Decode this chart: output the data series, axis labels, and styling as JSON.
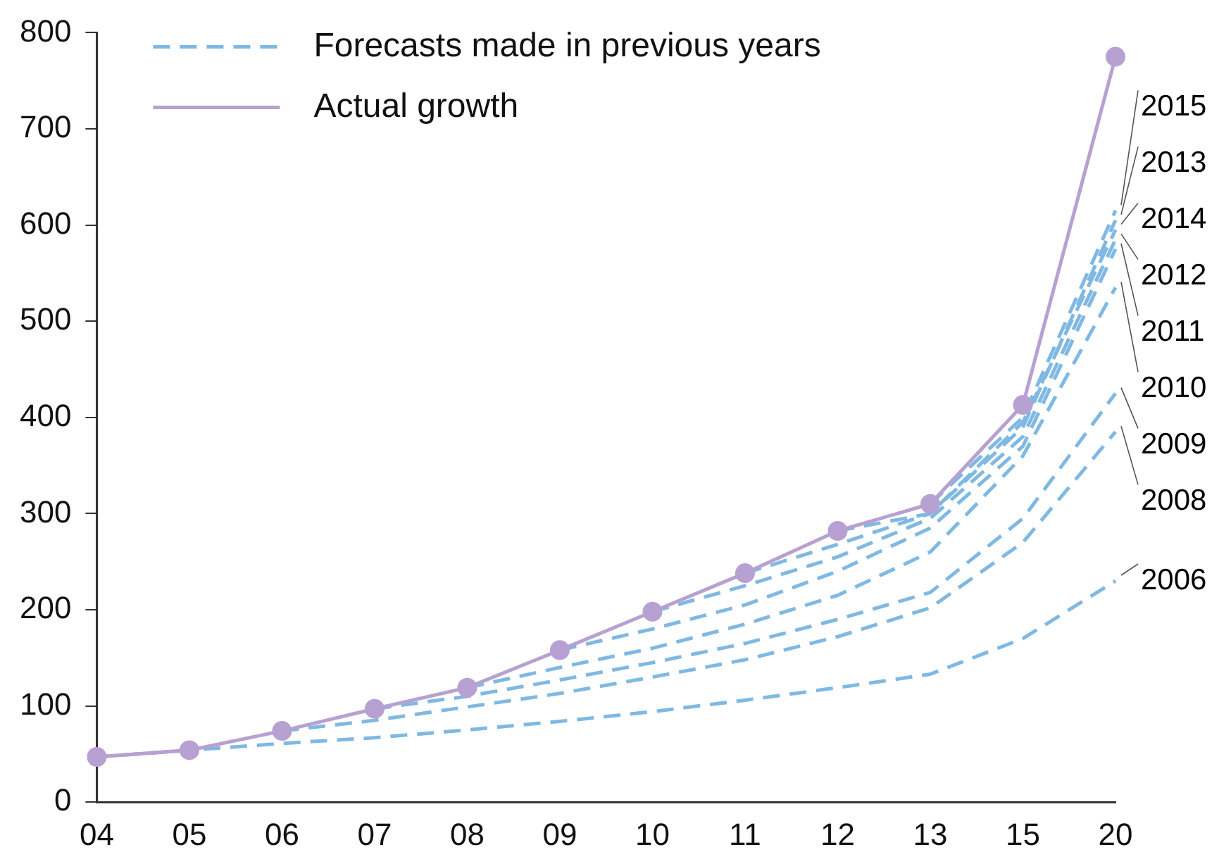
{
  "chart_data": {
    "type": "line",
    "categories": [
      "04",
      "05",
      "06",
      "07",
      "08",
      "09",
      "10",
      "11",
      "12",
      "13",
      "15",
      "20"
    ],
    "series": [
      {
        "name": "2015",
        "color": "#7fb9e3",
        "line_style": "dashed",
        "marker": "none",
        "values": [
          null,
          null,
          null,
          null,
          null,
          null,
          null,
          null,
          null,
          310,
          400,
          615
        ]
      },
      {
        "name": "2013",
        "color": "#7fb9e3",
        "line_style": "dashed",
        "marker": "none",
        "values": [
          null,
          null,
          null,
          null,
          null,
          null,
          null,
          238,
          268,
          300,
          390,
          605
        ]
      },
      {
        "name": "2014",
        "color": "#7fb9e3",
        "line_style": "dashed",
        "marker": "none",
        "values": [
          null,
          null,
          null,
          null,
          null,
          null,
          null,
          null,
          282,
          300,
          395,
          595
        ]
      },
      {
        "name": "2012",
        "color": "#7fb9e3",
        "line_style": "dashed",
        "marker": "none",
        "values": [
          null,
          null,
          null,
          null,
          null,
          null,
          198,
          225,
          255,
          295,
          380,
          585
        ]
      },
      {
        "name": "2011",
        "color": "#7fb9e3",
        "line_style": "dashed",
        "marker": "none",
        "values": [
          null,
          null,
          null,
          null,
          null,
          158,
          180,
          205,
          240,
          285,
          370,
          575
        ]
      },
      {
        "name": "2010",
        "color": "#7fb9e3",
        "line_style": "dashed",
        "marker": "none",
        "values": [
          null,
          null,
          null,
          null,
          119,
          140,
          160,
          185,
          215,
          260,
          360,
          535
        ]
      },
      {
        "name": "2009",
        "color": "#7fb9e3",
        "line_style": "dashed",
        "marker": "none",
        "values": [
          null,
          null,
          null,
          97,
          110,
          127,
          145,
          165,
          190,
          218,
          295,
          425
        ]
      },
      {
        "name": "2008",
        "color": "#7fb9e3",
        "line_style": "dashed",
        "marker": "none",
        "values": [
          null,
          null,
          74,
          85,
          99,
          113,
          130,
          148,
          172,
          202,
          270,
          385
        ]
      },
      {
        "name": "2006",
        "color": "#7fb9e3",
        "line_style": "dashed",
        "marker": "none",
        "values": [
          47,
          54,
          61,
          67,
          75,
          84,
          94,
          106,
          119,
          133,
          170,
          230
        ]
      },
      {
        "name": "Actual growth",
        "color": "#b7a0d2",
        "line_style": "solid",
        "marker": "circle",
        "values": [
          47,
          54,
          74,
          97,
          119,
          158,
          198,
          238,
          282,
          310,
          413,
          775
        ]
      }
    ],
    "annotations": [
      "Forecasts made in previous years"
    ],
    "ylim": [
      0,
      800
    ],
    "yticks": [
      0,
      100,
      200,
      300,
      400,
      500,
      600,
      700,
      800
    ],
    "grid": false,
    "legend": "top left"
  }
}
